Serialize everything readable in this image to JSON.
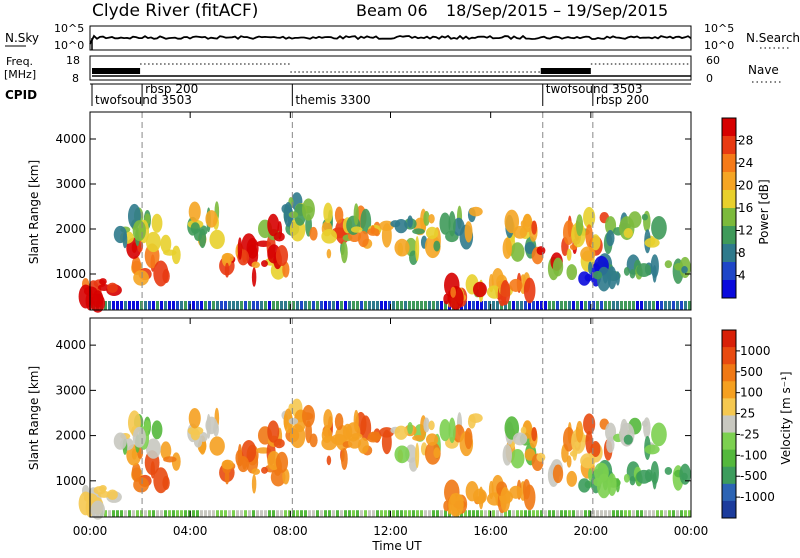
{
  "header": {
    "station": "Clyde River (fitACF)",
    "beam": "Beam 06",
    "date_range": "18/Sep/2015 – 19/Sep/2015"
  },
  "top_panels": {
    "nsky_label": "N.Sky",
    "nsky_ticks": [
      "10^5",
      "10^0"
    ],
    "nsearch_label": "N.Search",
    "nsearch_ticks": [
      "10^5",
      "10^0"
    ],
    "freq_label_1": "Freq.",
    "freq_label_2": "[MHz]",
    "freq_ticks": [
      "18",
      "8"
    ],
    "nave_label": "Nave",
    "nave_ticks": [
      "60",
      "0"
    ],
    "cpid_label": "CPID"
  },
  "cpid_segments": [
    {
      "name": "twofsound 3503",
      "start": 0.0,
      "end": 2.0
    },
    {
      "name": "rbsp 200",
      "start": 2.0,
      "end": 8.0
    },
    {
      "name": "themis 3300",
      "start": 8.0,
      "end": 18.0
    },
    {
      "name": "twofsound 3503",
      "start": 18.0,
      "end": 20.0
    },
    {
      "name": "rbsp 200",
      "start": 20.0,
      "end": 24.0
    }
  ],
  "chart_data": [
    {
      "type": "heatmap",
      "name": "power",
      "ylabel": "Slant Range [km]",
      "yticks": [
        1000,
        2000,
        3000,
        4000
      ],
      "ylim": [
        200,
        4600
      ],
      "xlim": [
        0,
        24
      ],
      "colorbar_label": "Power [dB]",
      "colorbar_ticks": [
        "28",
        "24",
        "20",
        "16",
        "12",
        "8",
        "4"
      ],
      "colorbar_colors": [
        "#0a0adc",
        "#1e46c8",
        "#2f7a8c",
        "#3f9a5a",
        "#7cba3c",
        "#e8d02c",
        "#f5a524",
        "#f57a18",
        "#e83a12",
        "#d60000"
      ]
    },
    {
      "type": "heatmap",
      "name": "velocity",
      "ylabel": "Slant Range [km]",
      "yticks": [
        1000,
        2000,
        3000,
        4000
      ],
      "ylim": [
        200,
        4600
      ],
      "xlim": [
        0,
        24
      ],
      "colorbar_label": "Velocity [m s⁻¹]",
      "colorbar_ticks": [
        "1000",
        "500",
        "100",
        "25",
        "-25",
        "-100",
        "-500",
        "-1000"
      ],
      "colorbar_colors": [
        "#1c3c9c",
        "#2c64b4",
        "#3c9c5c",
        "#54b83c",
        "#7cd050",
        "#c8c8c0",
        "#f5c850",
        "#f5a020",
        "#f07814",
        "#e84a10",
        "#d82008"
      ]
    }
  ],
  "xaxis": {
    "ticks": [
      "00:00",
      "04:00",
      "08:00",
      "12:00",
      "16:00",
      "20:00",
      "00:00"
    ],
    "label": "Time UT"
  }
}
